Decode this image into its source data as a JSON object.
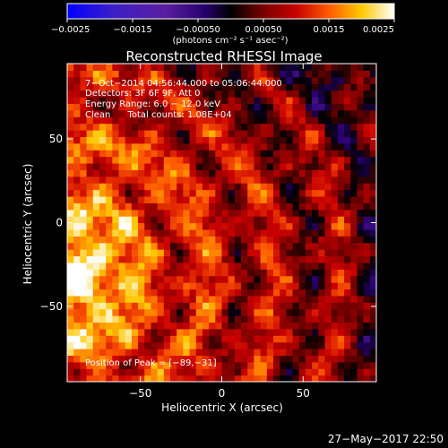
{
  "chart_data": {
    "type": "heatmap",
    "title": "Reconstructed RHESSI Image",
    "xlabel": "Heliocentric X (arcsec)",
    "ylabel": "Heliocentric Y (arcsec)",
    "xlim": [
      -95,
      95
    ],
    "ylim": [
      -95,
      95
    ],
    "x_ticks": [
      -50,
      0,
      50
    ],
    "y_ticks": [
      -50,
      0,
      50
    ],
    "x_tick_labels": [
      "−50",
      "0",
      "50"
    ],
    "y_tick_labels": [
      "−50",
      "0",
      "50"
    ],
    "colorbar": {
      "range": [
        -0.0025,
        0.0025
      ],
      "ticks": [
        -0.0025,
        -0.0015,
        -0.0005,
        0.0005,
        0.0015,
        0.0025
      ],
      "tick_labels": [
        "−0.0025",
        "−0.0015",
        "−0.00050",
        "0.00050",
        "0.0015",
        "0.0025"
      ],
      "label": "(photons cm⁻² s⁻¹ asec⁻²)"
    },
    "annotations": [
      "7−Oct−2014 04:56:44.000 to 05:06:44.000",
      "Detectors: 3F 6F 9F, Att 0",
      "Energy Range: 6.0 − 12.0 keV",
      "Clean      Total counts: 1.08E+04"
    ],
    "peak_label": "Position of Peak = [−89,−31]",
    "peak": [
      -89,
      -31
    ],
    "colors": {
      "cmap": [
        "#0000ff",
        "#3c1ec8",
        "#5a1ea0",
        "#28006e",
        "#000000",
        "#7a0000",
        "#c80000",
        "#ff5a00",
        "#ffc800",
        "#ffffff"
      ]
    }
  },
  "footer": {
    "date": "27−May−2017 22:50"
  }
}
